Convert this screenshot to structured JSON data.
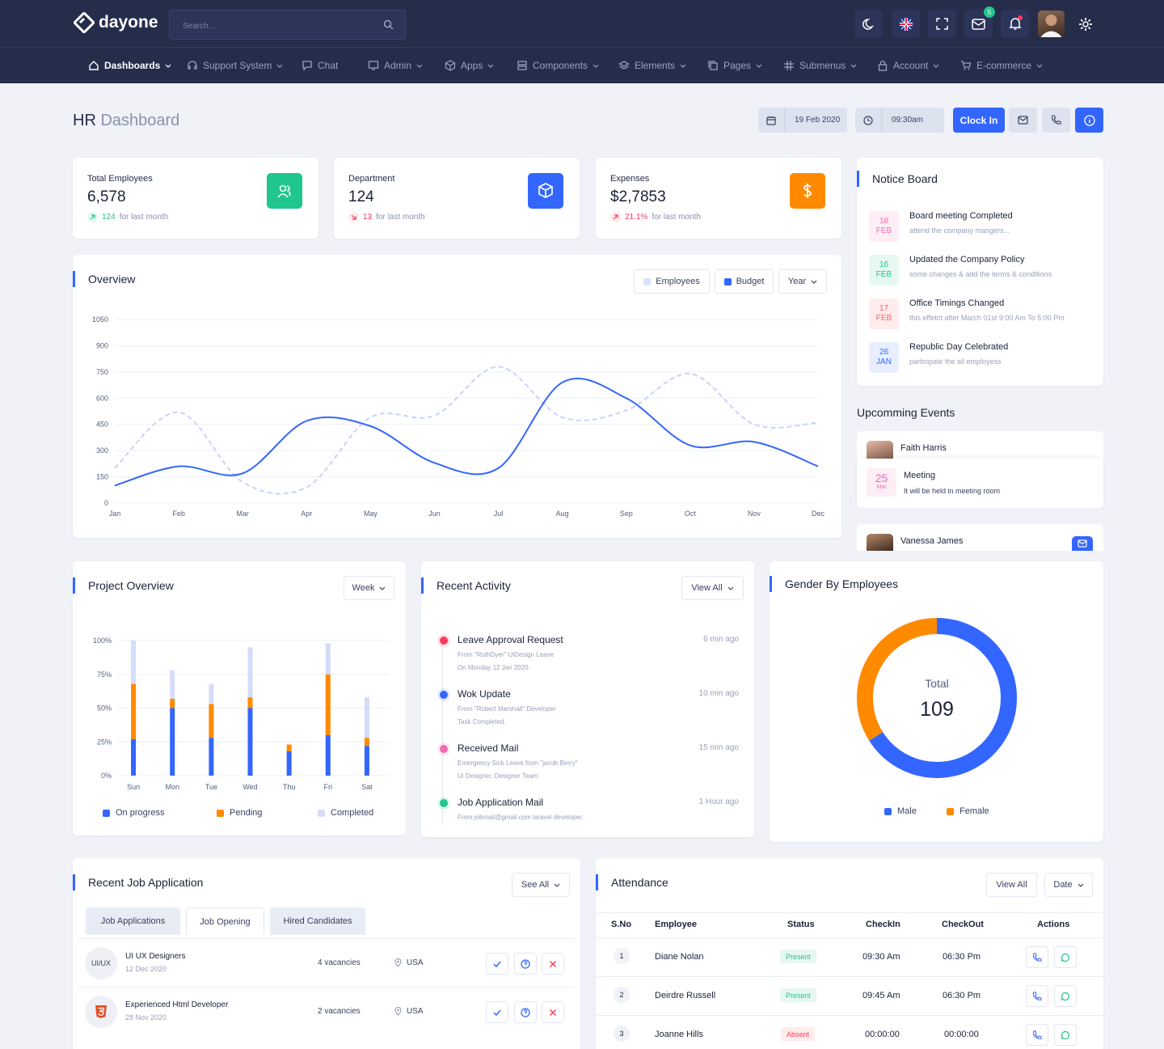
{
  "app": {
    "logo": "dayone",
    "search_placeholder": "Search...",
    "mail_badge": "5"
  },
  "nav": [
    {
      "label": "Dashboards",
      "active": true,
      "icon": "home-icon"
    },
    {
      "label": "Support System",
      "icon": "headset-icon"
    },
    {
      "label": "Chat",
      "icon": "chat-icon"
    },
    {
      "label": "Admin",
      "icon": "monitor-icon"
    },
    {
      "label": "Apps",
      "icon": "cube-icon"
    },
    {
      "label": "Components",
      "icon": "server-icon"
    },
    {
      "label": "Elements",
      "icon": "layers-icon"
    },
    {
      "label": "Pages",
      "icon": "copy-icon"
    },
    {
      "label": "Submenus",
      "icon": "hash-icon"
    },
    {
      "label": "Account",
      "icon": "lock-icon"
    },
    {
      "label": "E-commerce",
      "icon": "cart-icon"
    }
  ],
  "header": {
    "title_main": "HR",
    "title_sub": "Dashboard",
    "date": "19 Feb 2020",
    "time": "09:30am",
    "clock_in": "Clock In"
  },
  "stats": [
    {
      "label": "Total Employees",
      "value": "6,578",
      "change": "124",
      "suffix": "for last month",
      "trend": "up",
      "color": "#1fc78c",
      "icon": "users-icon"
    },
    {
      "label": "Department",
      "value": "124",
      "change": "13",
      "suffix": "for last month",
      "trend": "down",
      "color": "#3366ff",
      "icon": "box-icon"
    },
    {
      "label": "Expenses",
      "value": "$2,7853",
      "change": "21.1%",
      "suffix": "for last month",
      "trend": "up-red",
      "color": "#ff8a00",
      "icon": "dollar-icon"
    }
  ],
  "notice_board": {
    "title": "Notice Board",
    "items": [
      {
        "day": "18",
        "month": "FEB",
        "title": "Board meeting Completed",
        "desc": "attend the company mangers...",
        "color": "#f36bb0",
        "bg": "#fdeef6"
      },
      {
        "day": "16",
        "month": "FEB",
        "title": "Updated the Company Policy",
        "desc": "some changes & add the terms & conditions",
        "color": "#1fc78c",
        "bg": "#e6f8f1"
      },
      {
        "day": "17",
        "month": "FEB",
        "title": "Office Timings Changed",
        "desc": "this effetct after March 01st 9:00 Am To 5:00 Pm",
        "color": "#ff5e5e",
        "bg": "#ffecec"
      },
      {
        "day": "26",
        "month": "JAN",
        "title": "Republic Day Celebrated",
        "desc": "participate the all employess",
        "color": "#3366ff",
        "bg": "#e8efff"
      }
    ]
  },
  "events": {
    "title": "Upcomming Events",
    "person1": "Faith Harris",
    "meeting": {
      "day": "25",
      "month": "Mar",
      "title": "Meeting",
      "desc": "It will be held in meeting room"
    },
    "person2": "Vanessa James"
  },
  "overview": {
    "title": "Overview",
    "legend_employees": "Employees",
    "legend_budget": "Budget",
    "period": "Year"
  },
  "chart_data": [
    {
      "type": "line",
      "title": "Overview",
      "x": [
        "Jan",
        "Feb",
        "Mar",
        "Apr",
        "May",
        "Jun",
        "Jul",
        "Aug",
        "Sep",
        "Oct",
        "Nov",
        "Dec"
      ],
      "yticks": [
        "0",
        "150",
        "300",
        "450",
        "600",
        "750",
        "900",
        "1050"
      ],
      "ylim": [
        0,
        1050
      ],
      "grid": true,
      "series": [
        {
          "name": "Budget",
          "color": "#3366ff",
          "style": "solid",
          "values": [
            100,
            210,
            170,
            470,
            440,
            230,
            200,
            690,
            600,
            330,
            350,
            210
          ]
        },
        {
          "name": "Employees",
          "color": "#c8d3fb",
          "style": "dashed",
          "values": [
            200,
            520,
            120,
            90,
            490,
            500,
            780,
            490,
            530,
            740,
            450,
            460
          ]
        }
      ]
    },
    {
      "type": "bar",
      "title": "Project Overview",
      "stacked": true,
      "categories": [
        "Sun",
        "Mon",
        "Tue",
        "Wed",
        "Thu",
        "Fri",
        "Sat"
      ],
      "yticks": [
        "0%",
        "25%",
        "50%",
        "75%",
        "100%"
      ],
      "ylim": [
        0,
        100
      ],
      "series": [
        {
          "name": "On progress",
          "color": "#3366ff",
          "values": [
            27,
            50,
            28,
            50,
            18,
            30,
            22
          ]
        },
        {
          "name": "Pending",
          "color": "#ff8a00",
          "values": [
            41,
            7,
            25,
            8,
            5,
            45,
            6
          ]
        },
        {
          "name": "Completed",
          "color": "#d5dcf9",
          "values": [
            32,
            21,
            15,
            37,
            0,
            23,
            30
          ]
        }
      ]
    },
    {
      "type": "pie",
      "title": "Gender By Employees",
      "center_label": "Total",
      "center_value": "109",
      "categories": [
        "Male",
        "Female"
      ],
      "values": [
        72,
        37
      ],
      "colors": [
        "#3366ff",
        "#ff8a00"
      ]
    }
  ],
  "project": {
    "title": "Project Overview",
    "period": "Week"
  },
  "activity": {
    "title": "Recent Activity",
    "view_all": "View All",
    "items": [
      {
        "title": "Leave Approval Request",
        "line1": "From \"RuthDyer\" UiDesign Leave",
        "line2": "On Monday 12 Jan 2020.",
        "time": "6 min ago",
        "color": "#ff3b5c"
      },
      {
        "title": "Wok Update",
        "line1": "From \"Robert Marshall\" Developer",
        "line2": "Task Completed.",
        "time": "10 min ago",
        "color": "#3366ff"
      },
      {
        "title": "Received Mail",
        "line1": "Emergency Sick Leave from \"jacob Berry\"",
        "line2": "Ui Designer, Designer Team.",
        "time": "15 min ago",
        "color": "#f36bb0"
      },
      {
        "title": "Job Application Mail",
        "line1": "From jobmail@gmail.com laravel developer.",
        "line2": "",
        "time": "1 Hour ago",
        "color": "#1fc78c"
      }
    ]
  },
  "gender": {
    "title": "Gender By Employees",
    "male": "Male",
    "female": "Female"
  },
  "jobs": {
    "title": "Recent Job Application",
    "see_all": "See All",
    "tabs": [
      "Job Applications",
      "Job Opening",
      "Hired Candidates"
    ],
    "rows": [
      {
        "avatar": "UI/UX",
        "title": "UI UX Designers",
        "date": "12 Dec 2020",
        "vacancies": "4 vacancies",
        "location": "USA"
      },
      {
        "avatar": "html5",
        "title": "Experienced Html Developer",
        "date": "28 Nov 2020",
        "vacancies": "2 vacancies",
        "location": "USA"
      }
    ]
  },
  "attendance": {
    "title": "Attendance",
    "view_all": "View All",
    "date": "Date",
    "headers": [
      "S.No",
      "Employee",
      "Status",
      "CheckIn",
      "CheckOut",
      "Actions"
    ],
    "rows": [
      {
        "sno": "1",
        "name": "Diane Nolan",
        "status": "Present",
        "checkin": "09:30 Am",
        "checkout": "06:30 Pm"
      },
      {
        "sno": "2",
        "name": "Deirdre Russell",
        "status": "Present",
        "checkin": "09:45 Am",
        "checkout": "06:30 Pm"
      },
      {
        "sno": "3",
        "name": "Joanne Hills",
        "status": "Absent",
        "checkin": "00:00:00",
        "checkout": "00:00:00"
      }
    ]
  }
}
